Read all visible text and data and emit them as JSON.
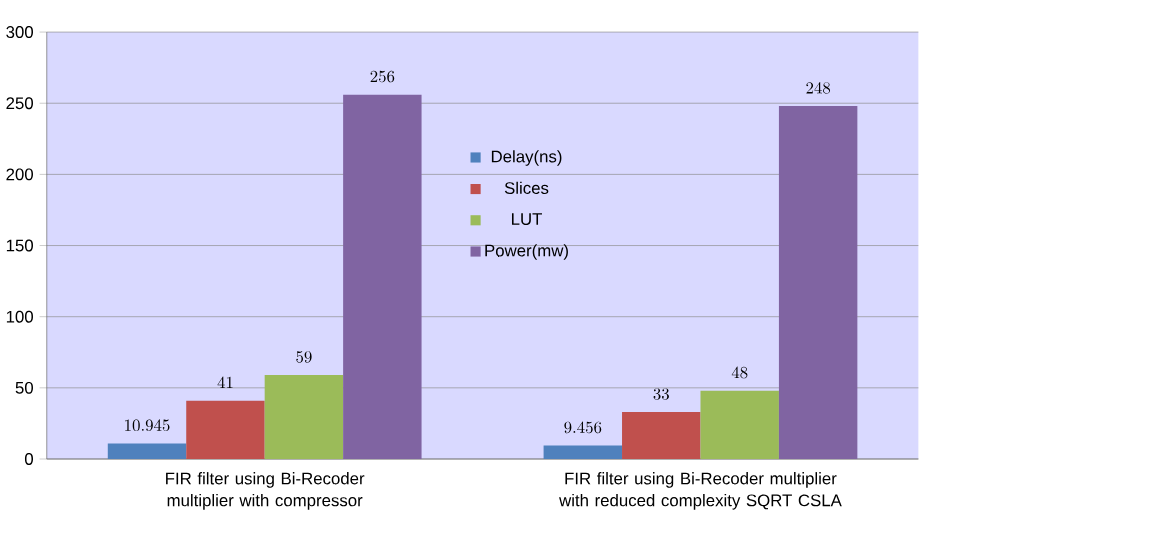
{
  "chart_data": {
    "type": "bar",
    "categories": [
      "FIR filter using Bi-Recoder multiplier with compressor",
      "FIR filter using Bi-Recoder multiplier with reduced complexity SQRT CSLA"
    ],
    "series": [
      {
        "name": "Delay(ns)",
        "color": "#4f81bd",
        "values": [
          10.945,
          9.456
        ]
      },
      {
        "name": "Slices",
        "color": "#c0504d",
        "values": [
          41,
          33
        ]
      },
      {
        "name": "LUT",
        "color": "#9bbb59",
        "values": [
          59,
          48
        ]
      },
      {
        "name": "Power(mw)",
        "color": "#8064a2",
        "values": [
          256,
          248
        ]
      }
    ],
    "ylim": [
      0,
      300
    ],
    "yticks": [
      0,
      50,
      100,
      150,
      200,
      250,
      300
    ],
    "grid": "y",
    "legend": "center",
    "data_labels": true
  }
}
